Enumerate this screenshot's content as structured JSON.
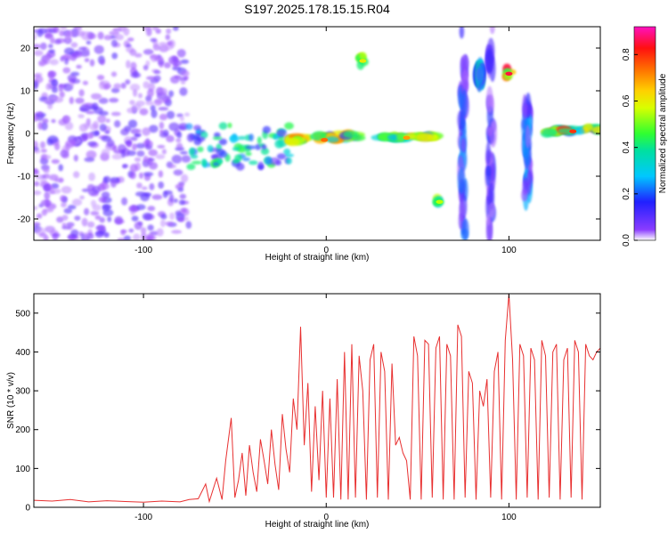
{
  "figure_title": "S197.2025.178.15.15.R04",
  "colors": {
    "snr_line": "#e83030",
    "plot_frame": "#000000"
  },
  "chart_data": [
    {
      "type": "heatmap",
      "title": "S197.2025.178.15.15.R04",
      "xlabel": "Height of straight line (km)",
      "ylabel": "Frequency (Hz)",
      "xlim": [
        -160,
        150
      ],
      "ylim": [
        -25,
        25
      ],
      "x_ticks": [
        -100,
        0,
        100
      ],
      "y_ticks": [
        -20,
        -10,
        0,
        10,
        20
      ],
      "colorbar": {
        "label": "Normalized spectral amplitude",
        "range": [
          0,
          0.92
        ],
        "ticks": [
          0.0,
          0.2,
          0.4,
          0.6,
          0.8
        ],
        "colormap": "rainbow (purple-blue-cyan-green-yellow-orange-red-magenta)"
      },
      "features": [
        {
          "x": [
            -160,
            -75
          ],
          "y": [
            -25,
            25
          ],
          "amplitude": 0.15,
          "kind": "broadband noise"
        },
        {
          "x": [
            -75,
            -20
          ],
          "y": [
            -8,
            2
          ],
          "amplitude": 0.45,
          "kind": "scattered blobs"
        },
        {
          "x": [
            -20,
            18
          ],
          "y": [
            -4,
            1
          ],
          "amplitude": 0.75,
          "kind": "ridge near 0 Hz"
        },
        {
          "x": [
            28,
            60
          ],
          "y": [
            -2,
            0
          ],
          "amplitude": 0.7,
          "kind": "ridge near 0 Hz"
        },
        {
          "x": [
            120,
            150
          ],
          "y": [
            -1,
            2
          ],
          "amplitude": 0.8,
          "kind": "ridge near 0 Hz"
        },
        {
          "x": 20,
          "y": 17,
          "amplitude": 0.6,
          "kind": "isolated peak"
        },
        {
          "x": 62,
          "y": -16,
          "amplitude": 0.55,
          "kind": "isolated peak"
        },
        {
          "x": 100,
          "y": 14,
          "amplitude": 0.85,
          "kind": "isolated peak"
        },
        {
          "x": 84,
          "y": 14,
          "amplitude": 0.35,
          "kind": "vertical streak"
        },
        {
          "x": 75,
          "y": [
            -25,
            25
          ],
          "amplitude": 0.25,
          "kind": "vertical streak"
        },
        {
          "x": 90,
          "y": [
            -25,
            25
          ],
          "amplitude": 0.2,
          "kind": "vertical streak"
        },
        {
          "x": 110,
          "y": [
            -15,
            8
          ],
          "amplitude": 0.3,
          "kind": "vertical streak"
        }
      ]
    },
    {
      "type": "line",
      "xlabel": "Height of straight line (km)",
      "ylabel": "SNR (10 * v/v)",
      "xlim": [
        -160,
        150
      ],
      "ylim": [
        0,
        550
      ],
      "x_ticks": [
        -100,
        0,
        100
      ],
      "y_ticks": [
        0,
        100,
        200,
        300,
        400,
        500
      ],
      "series": [
        {
          "x": [
            -160,
            -150,
            -140,
            -130,
            -120,
            -110,
            -100,
            -90,
            -80,
            -75,
            -70,
            -66,
            -64,
            -60,
            -57,
            -55,
            -52,
            -50,
            -48,
            -46,
            -44,
            -42,
            -40,
            -38,
            -36,
            -34,
            -32,
            -30,
            -28,
            -26,
            -24,
            -22,
            -20,
            -18,
            -16,
            -14,
            -12,
            -10,
            -8,
            -6,
            -4,
            -2,
            0,
            2,
            4,
            6,
            8,
            10,
            12,
            14,
            16,
            18,
            20,
            22,
            24,
            26,
            28,
            30,
            32,
            34,
            36,
            38,
            40,
            42,
            44,
            46,
            48,
            50,
            52,
            54,
            56,
            58,
            60,
            62,
            64,
            66,
            68,
            70,
            72,
            74,
            76,
            78,
            80,
            82,
            84,
            86,
            88,
            90,
            92,
            94,
            96,
            98,
            100,
            102,
            104,
            106,
            108,
            110,
            112,
            114,
            116,
            118,
            120,
            122,
            124,
            126,
            128,
            130,
            132,
            134,
            136,
            138,
            140,
            142,
            144,
            146,
            148,
            150
          ],
          "y": [
            18,
            16,
            20,
            14,
            17,
            15,
            13,
            16,
            14,
            20,
            22,
            60,
            15,
            75,
            20,
            120,
            230,
            25,
            70,
            140,
            30,
            160,
            90,
            40,
            175,
            120,
            60,
            200,
            110,
            45,
            240,
            150,
            90,
            280,
            200,
            465,
            160,
            320,
            40,
            260,
            70,
            300,
            25,
            280,
            25,
            330,
            20,
            400,
            20,
            420,
            25,
            390,
            300,
            20,
            380,
            420,
            25,
            400,
            350,
            20,
            370,
            160,
            180,
            140,
            120,
            20,
            440,
            390,
            20,
            430,
            420,
            25,
            410,
            440,
            20,
            420,
            390,
            20,
            470,
            440,
            25,
            350,
            320,
            20,
            300,
            260,
            330,
            25,
            350,
            400,
            20,
            430,
            550,
            380,
            20,
            420,
            390,
            25,
            410,
            380,
            20,
            430,
            390,
            25,
            400,
            420,
            20,
            380,
            410,
            25,
            430,
            400,
            20,
            420,
            390,
            380,
            400,
            410
          ]
        }
      ]
    }
  ]
}
